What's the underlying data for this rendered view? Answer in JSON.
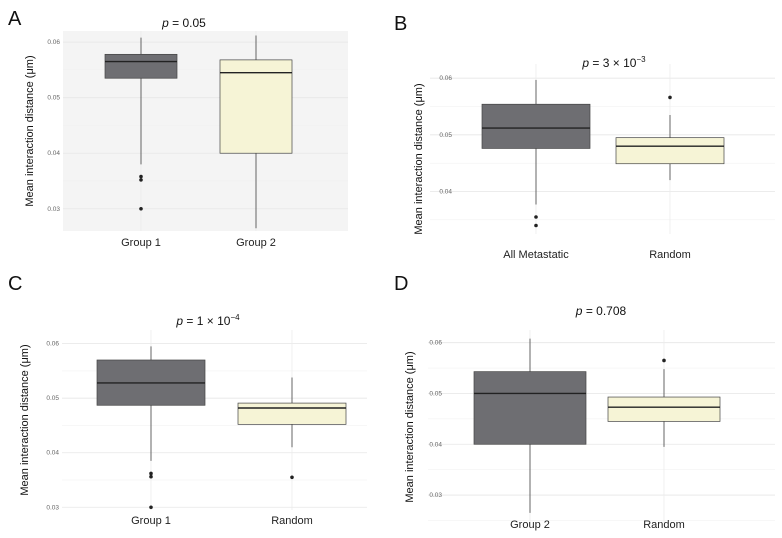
{
  "chart_data": [
    {
      "type": "box",
      "panel_label": "A",
      "title_prefix": "p",
      "title_text": " = 0.05",
      "ylabel": "Mean interaction distance (μm)",
      "ylim": [
        0.026,
        0.062
      ],
      "yticks": [
        "0.06",
        "0.05",
        "0.04",
        "0.03"
      ],
      "tick_values": [
        0.06,
        0.05,
        0.04,
        0.03
      ],
      "panel_background": "#f4f4f4",
      "categories": [
        "Group 1",
        "Group 2"
      ],
      "boxes": [
        {
          "category": "Group 1",
          "whisker_low": 0.038,
          "q1": 0.0535,
          "median": 0.0565,
          "q3": 0.0578,
          "whisker_high": 0.0608,
          "outliers": [
            0.0358,
            0.0352,
            0.03
          ],
          "color": "#6e6e72"
        },
        {
          "category": "Group 2",
          "whisker_low": 0.0265,
          "q1": 0.04,
          "median": 0.0545,
          "q3": 0.0568,
          "whisker_high": 0.0612,
          "outliers": [],
          "color": "#f6f4d6"
        }
      ]
    },
    {
      "type": "box",
      "panel_label": "B",
      "title_prefix": "p",
      "title_text": " = 3 × 10",
      "title_sup": "−3",
      "ylabel": "Mean interaction distance (μm)",
      "ylim": [
        0.0325,
        0.0625
      ],
      "yticks": [
        "0.06",
        "0.05",
        "0.04"
      ],
      "tick_values": [
        0.06,
        0.05,
        0.04
      ],
      "panel_background": "#ffffff",
      "categories": [
        "All Metastatic",
        "Random"
      ],
      "boxes": [
        {
          "category": "All Metastatic",
          "whisker_low": 0.0377,
          "q1": 0.0476,
          "median": 0.0512,
          "q3": 0.0554,
          "whisker_high": 0.0597,
          "outliers": [
            0.0355,
            0.034
          ],
          "color": "#6e6e72"
        },
        {
          "category": "Random",
          "whisker_low": 0.042,
          "q1": 0.0449,
          "median": 0.048,
          "q3": 0.0495,
          "whisker_high": 0.0535,
          "outliers": [
            0.0566
          ],
          "color": "#f6f4d6"
        }
      ]
    },
    {
      "type": "box",
      "panel_label": "C",
      "title_prefix": "p",
      "title_text": " = 1 × 10",
      "title_sup": "−4",
      "ylabel": "Mean interaction distance (μm)",
      "ylim": [
        0.0295,
        0.0625
      ],
      "yticks": [
        "0.06",
        "0.05",
        "0.04",
        "0.03"
      ],
      "tick_values": [
        0.06,
        0.05,
        0.04,
        0.03
      ],
      "panel_background": "#ffffff",
      "categories": [
        "Group 1",
        "Random"
      ],
      "boxes": [
        {
          "category": "Group 1",
          "whisker_low": 0.0385,
          "q1": 0.0487,
          "median": 0.0528,
          "q3": 0.057,
          "whisker_high": 0.0595,
          "outliers": [
            0.0362,
            0.0356,
            0.03
          ],
          "color": "#6e6e72"
        },
        {
          "category": "Random",
          "whisker_low": 0.041,
          "q1": 0.0452,
          "median": 0.0482,
          "q3": 0.0491,
          "whisker_high": 0.0538,
          "outliers": [
            0.0355
          ],
          "color": "#f6f4d6"
        }
      ]
    },
    {
      "type": "box",
      "panel_label": "D",
      "title_prefix": "p",
      "title_text": " = 0.708",
      "ylabel": "Mean interaction distance (μm)",
      "ylim": [
        0.0245,
        0.0625
      ],
      "yticks": [
        "0.06",
        "0.05",
        "0.04",
        "0.03"
      ],
      "tick_values": [
        0.06,
        0.05,
        0.04,
        0.03
      ],
      "panel_background": "#ffffff",
      "categories": [
        "Group 2",
        "Random"
      ],
      "boxes": [
        {
          "category": "Group 2",
          "whisker_low": 0.0265,
          "q1": 0.04,
          "median": 0.05,
          "q3": 0.0543,
          "whisker_high": 0.0608,
          "outliers": [],
          "color": "#6e6e72"
        },
        {
          "category": "Random",
          "whisker_low": 0.0395,
          "q1": 0.0445,
          "median": 0.0473,
          "q3": 0.0493,
          "whisker_high": 0.0548,
          "outliers": [
            0.0565
          ],
          "color": "#f6f4d6"
        }
      ]
    }
  ]
}
